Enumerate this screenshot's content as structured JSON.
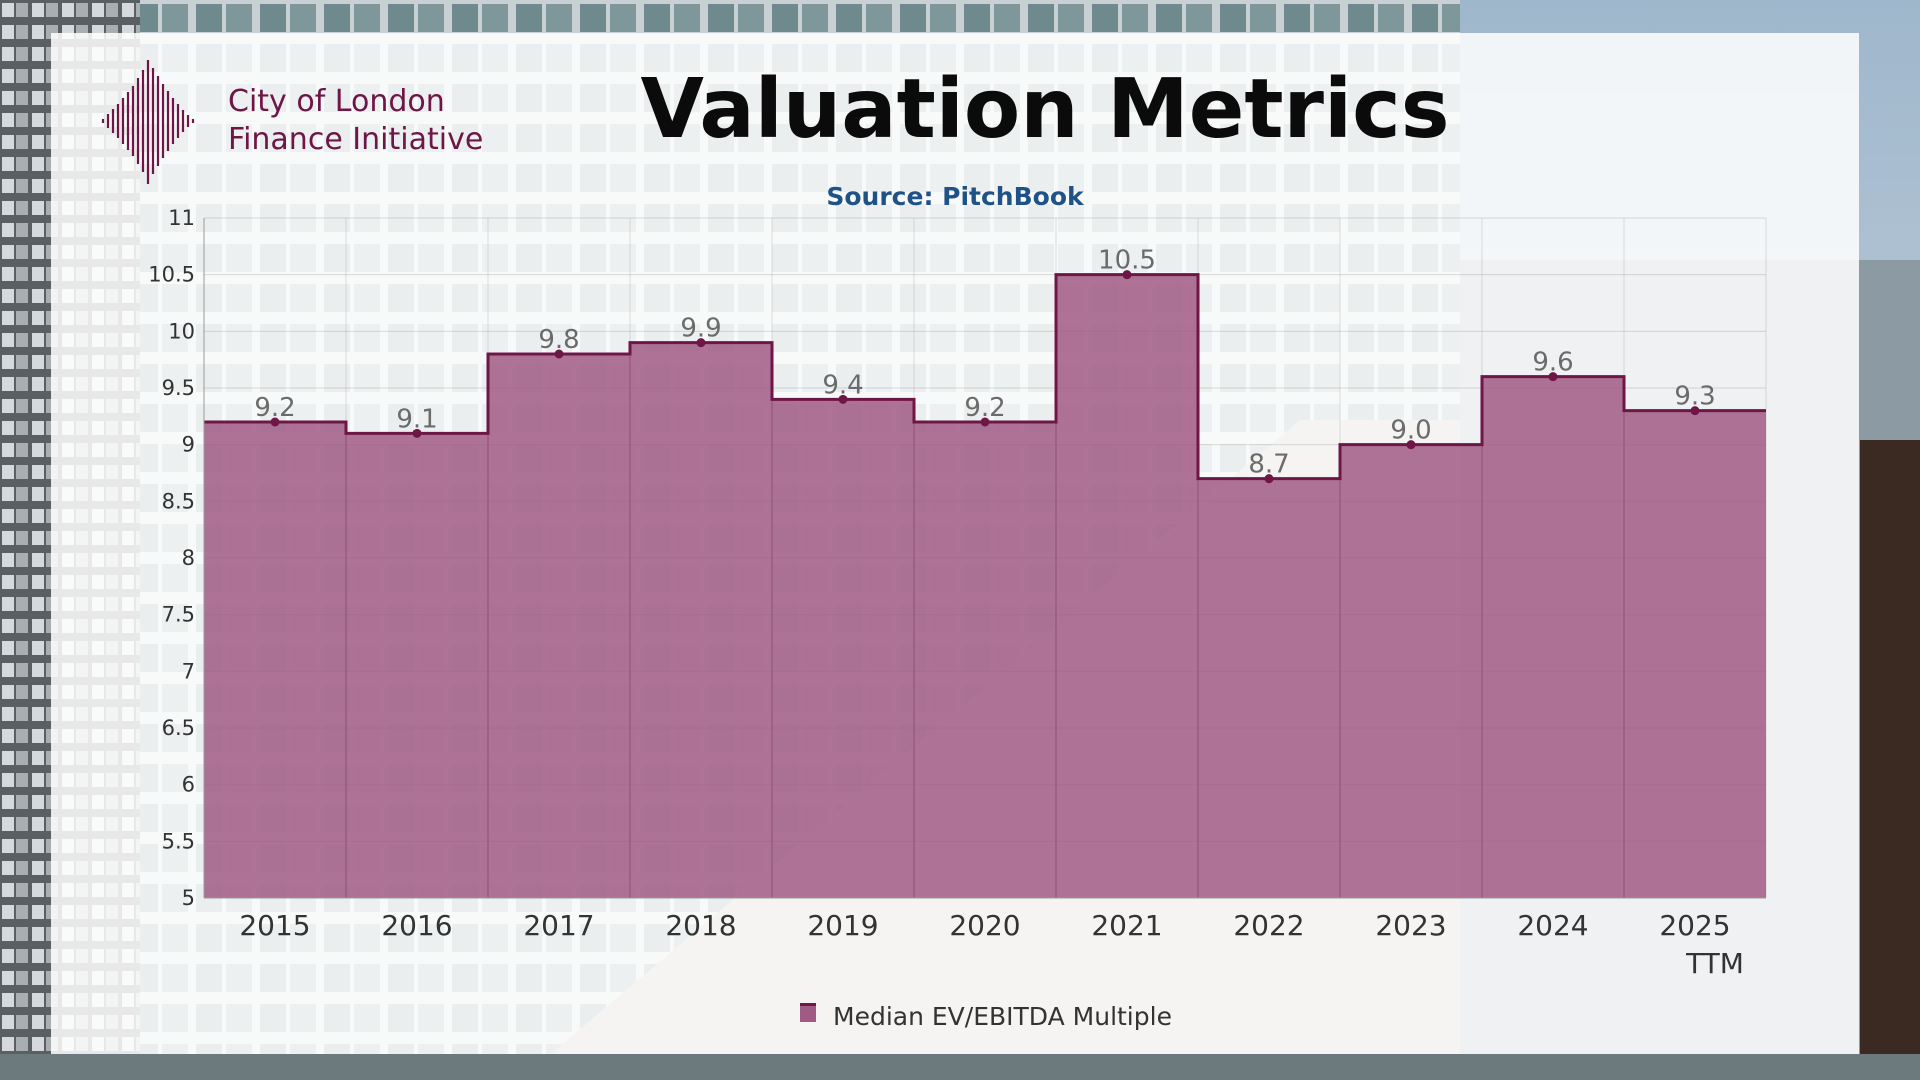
{
  "brand": {
    "line1": "City of London",
    "line2": "Finance Initiative"
  },
  "colors": {
    "brand": "#6e1646",
    "fill": "#a05a84",
    "source": "#1f5287"
  },
  "chart_data": {
    "type": "area",
    "step": "center",
    "title": "Valuation Metrics",
    "subtitle": "Source: PitchBook",
    "categories": [
      "2015",
      "2016",
      "2017",
      "2018",
      "2019",
      "2020",
      "2021",
      "2022",
      "2023",
      "2024",
      "2025 TTM"
    ],
    "series": [
      {
        "name": "Median EV/EBITDA Multiple",
        "values": [
          9.2,
          9.1,
          9.8,
          9.9,
          9.4,
          9.2,
          10.5,
          8.7,
          9.0,
          9.6,
          9.3
        ],
        "labels": [
          "9.2",
          "9.1",
          "9.8",
          "9.9",
          "9.4",
          "9.2",
          "10.5",
          "8.7",
          "9.0",
          "9.6",
          "9.3"
        ]
      }
    ],
    "ylim": [
      5,
      11
    ],
    "yticks": [
      5,
      5.5,
      6,
      6.5,
      7,
      7.5,
      8,
      8.5,
      9,
      9.5,
      10,
      10.5,
      11
    ],
    "ytick_labels": [
      "5",
      "5.5",
      "6",
      "6.5",
      "7",
      "7.5",
      "8",
      "8.5",
      "9",
      "9.5",
      "10",
      "10.5",
      "11"
    ],
    "grid": true,
    "legend_position": "bottom-center"
  }
}
